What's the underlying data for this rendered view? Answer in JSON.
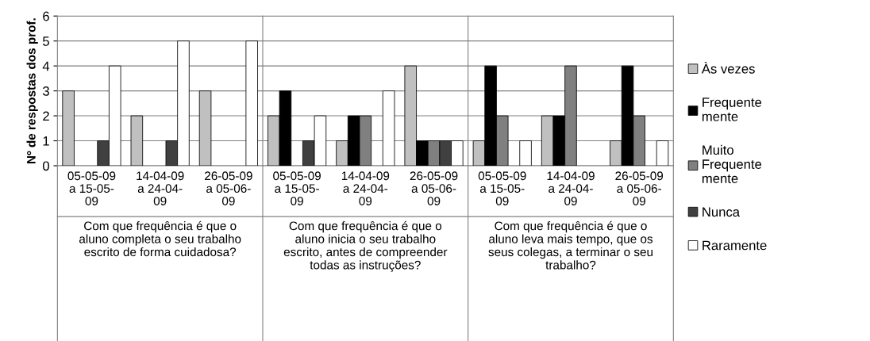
{
  "chart_data": {
    "type": "bar",
    "ylabel": "Nº de respostas dos prof.",
    "categories": [
      "05-05-09\na 15-05-\n09",
      "14-04-09\na 24-04-\n09",
      "26-05-09\na 05-06-\n09",
      "05-05-09\na 15-05-\n09",
      "14-04-09\na 24-04-\n09",
      "26-05-09\na 05-06-\n09",
      "05-05-09\na 15-05-\n09",
      "14-04-09\na 24-04-\n09",
      "26-05-09\na 05-06-\n09"
    ],
    "annotations": [
      "Com que frequência é que o\naluno completa o seu trabalho\nescrito de forma cuidadosa?",
      "Com que frequência é que o\naluno inicia o seu trabalho\nescrito, antes de compreender\ntodas as instruções?",
      "Com que frequência é que o\naluno leva mais tempo, que os\nseus colegas, a terminar o seu\ntrabalho?"
    ],
    "series": [
      {
        "name": "Às vezes",
        "color": "#c0c0c0",
        "values": [
          3,
          2,
          3,
          2,
          1,
          4,
          1,
          2,
          1
        ]
      },
      {
        "name": "Frequente\nmente",
        "color": "#000000",
        "values": [
          0,
          0,
          0,
          3,
          2,
          1,
          4,
          2,
          4
        ]
      },
      {
        "name": "Muito\nFrequente\nmente",
        "color": "#808080",
        "values": [
          0,
          0,
          0,
          0,
          2,
          1,
          2,
          4,
          2
        ]
      },
      {
        "name": "Nunca",
        "color": "#404040",
        "values": [
          1,
          1,
          0,
          1,
          0,
          1,
          0,
          0,
          0
        ]
      },
      {
        "name": "Raramente",
        "color": "#ffffff",
        "values": [
          4,
          5,
          5,
          2,
          3,
          1,
          1,
          0,
          1
        ]
      }
    ],
    "ylim": [
      0,
      6
    ],
    "yticks": [
      0,
      1,
      2,
      3,
      4,
      5,
      6
    ],
    "grid": "y",
    "legend": "right"
  }
}
